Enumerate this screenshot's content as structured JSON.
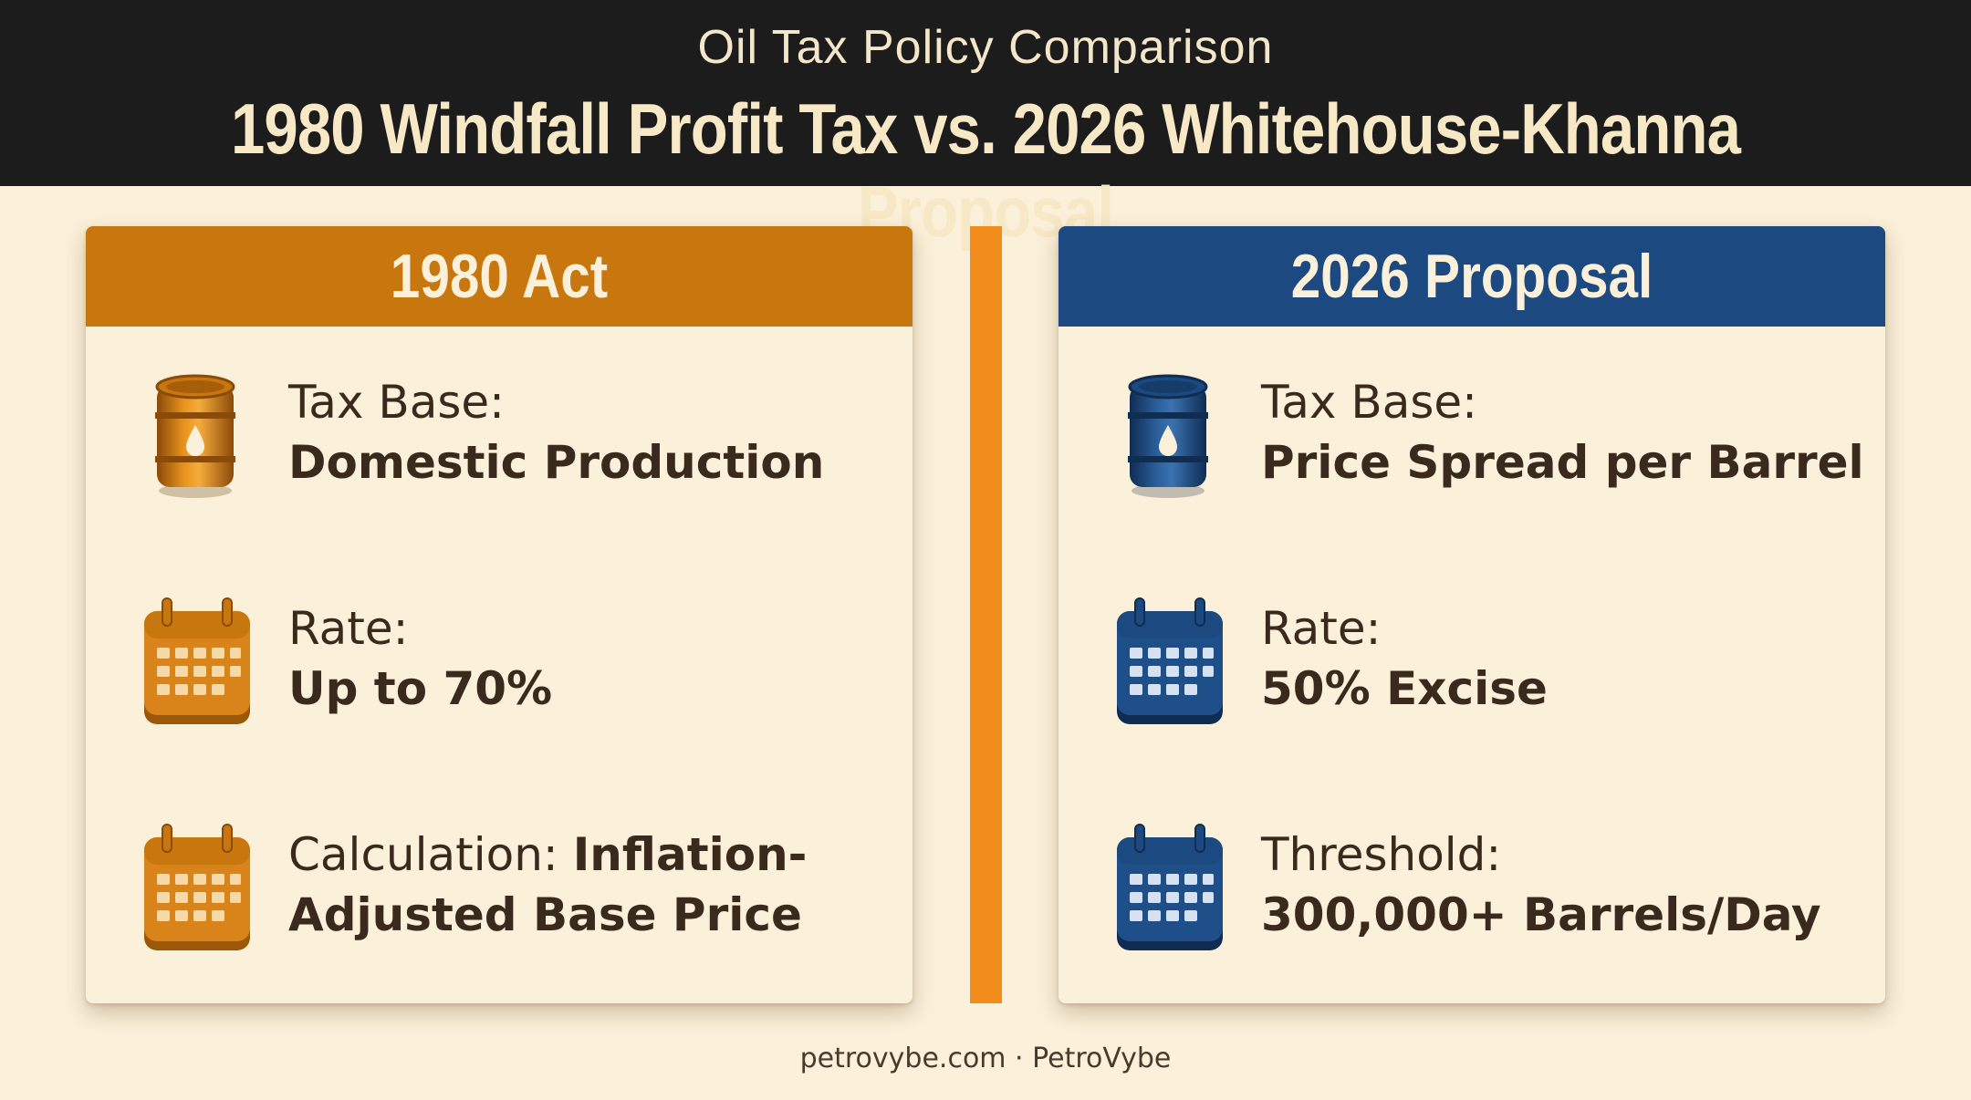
{
  "header": {
    "subtitle": "Oil Tax Policy Comparison",
    "title": "1980 Windfall Profit Tax vs. 2026 Whitehouse-Khanna Proposal"
  },
  "colors": {
    "orange": "#c8760e",
    "blue": "#1c4a80",
    "divider": "#f28c1a",
    "background": "#fbf0d9"
  },
  "left": {
    "heading": "1980 Act",
    "rows": [
      {
        "icon": "oil-barrel-icon",
        "label": "Tax Base:",
        "value": "Domestic Production"
      },
      {
        "icon": "calendar-icon",
        "label": "Rate:",
        "value": "Up to 70%"
      },
      {
        "icon": "calendar-icon",
        "label": "Calculation:",
        "value": "Inflation-Adjusted Base Price"
      }
    ]
  },
  "right": {
    "heading": "2026 Proposal",
    "rows": [
      {
        "icon": "oil-barrel-icon",
        "label": "Tax Base:",
        "value": "Price Spread per Barrel"
      },
      {
        "icon": "calendar-icon",
        "label": "Rate:",
        "value": "50% Excise"
      },
      {
        "icon": "calendar-icon",
        "label": "Threshold:",
        "value": "300,000+ Barrels/Day"
      }
    ]
  },
  "footer": "petrovybe.com · PetroVybe"
}
